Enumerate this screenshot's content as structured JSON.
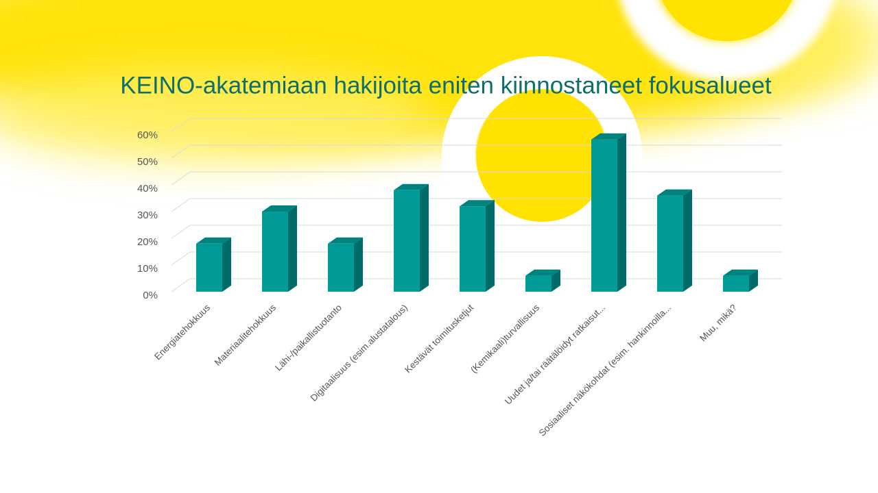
{
  "chart_data": {
    "type": "bar3d",
    "title": "KEINO-akatemiaan hakijoita eniten kiinnostaneet fokusalueet",
    "categories": [
      "Energiatehokkuus",
      "Materiaalitehokkuus",
      "Lähi-/paikallistuotanto",
      "Digitaalisuus (esim.alustatalous)",
      "Kestävät toimitusketjut",
      "(Kemikaali)turvallisuus",
      "Uudet ja/tai räätälöidyt ratkaisut...",
      "Sosiaaliset näkökohdat (esim. hankinnoilla...",
      "Muu, mikä?"
    ],
    "values": [
      18,
      30,
      18,
      38,
      32,
      6,
      57,
      36,
      6
    ],
    "color": "#009b96",
    "ylim": [
      0,
      60
    ],
    "yticks": [
      {
        "value": 0,
        "label": "0%"
      },
      {
        "value": 10,
        "label": "10%"
      },
      {
        "value": 20,
        "label": "20%"
      },
      {
        "value": 30,
        "label": "30%"
      },
      {
        "value": 40,
        "label": "40%"
      },
      {
        "value": 50,
        "label": "50%"
      },
      {
        "value": 60,
        "label": "60%"
      }
    ],
    "grid": true
  }
}
